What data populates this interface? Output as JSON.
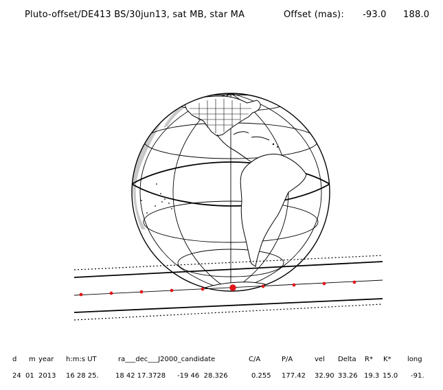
{
  "header": {
    "title": "Pluto-offset/DE413 BS/30jun13, sat MB, star MA",
    "offset_label": "Offset (mas):",
    "offset_x": "-93.0",
    "offset_y": "188.0"
  },
  "table": {
    "headers": [
      "d",
      "m",
      "year",
      "h:m:s UT",
      "ra___dec___J2000_candidate",
      "C/A",
      "P/A",
      "vel",
      "Delta",
      "R*",
      "K*",
      "long"
    ],
    "row": [
      "24",
      "01",
      "2013",
      "16 28 25.",
      "18 42 17.3728",
      "-19 46  28.326",
      "0.255",
      "177.42",
      "32.90",
      "33.26",
      "19.3",
      "15.0",
      "-91."
    ]
  },
  "colors": {
    "shadow_path": "#000000",
    "event_points": "#e0161a",
    "land_shade": "#c8c8c8"
  }
}
